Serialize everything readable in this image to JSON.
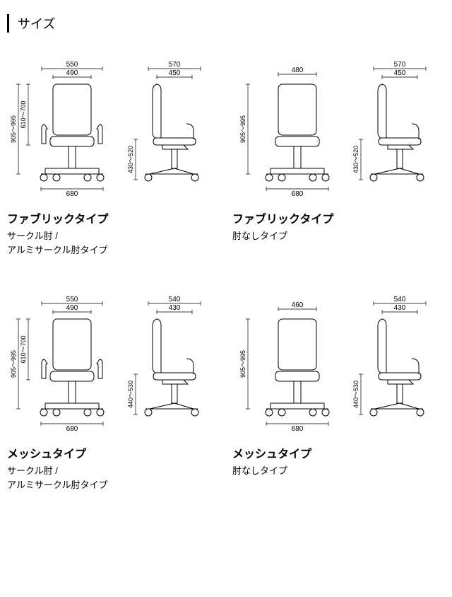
{
  "title": "サイズ",
  "colors": {
    "stroke": "#000000",
    "fill": "#ffffff",
    "dim_line": "#000000",
    "background": "#ffffff"
  },
  "stroke_width": {
    "chair": 1,
    "dim": 0.7
  },
  "variants": [
    {
      "type_label": "ファブリックタイプ",
      "sub_label_1": "サークル肘 /",
      "sub_label_2": "アルミサークル肘タイプ",
      "front": {
        "has_arm": true,
        "top_outer": "550",
        "top_inner": "490",
        "base": "680",
        "h_outer": "905～995",
        "h_inner": "610～700"
      },
      "side": {
        "top_outer": "570",
        "top_inner": "450",
        "h": "430～520"
      }
    },
    {
      "type_label": "ファブリックタイプ",
      "sub_label_1": "肘なしタイプ",
      "sub_label_2": "",
      "front": {
        "has_arm": false,
        "top_outer": "",
        "top_inner": "480",
        "base": "680",
        "h_outer": "905～995",
        "h_inner": ""
      },
      "side": {
        "top_outer": "570",
        "top_inner": "450",
        "h": "430～520"
      }
    },
    {
      "type_label": "メッシュタイプ",
      "sub_label_1": "サークル肘 /",
      "sub_label_2": "アルミサークル肘タイプ",
      "front": {
        "has_arm": true,
        "top_outer": "550",
        "top_inner": "490",
        "base": "680",
        "h_outer": "905～995",
        "h_inner": "610～700"
      },
      "side": {
        "top_outer": "540",
        "top_inner": "430",
        "h": "440～530"
      }
    },
    {
      "type_label": "メッシュタイプ",
      "sub_label_1": "肘なしタイプ",
      "sub_label_2": "",
      "front": {
        "has_arm": false,
        "top_outer": "",
        "top_inner": "460",
        "base": "680",
        "h_outer": "905～995",
        "h_inner": ""
      },
      "side": {
        "top_outer": "540",
        "top_inner": "430",
        "h": "440～530"
      }
    }
  ]
}
